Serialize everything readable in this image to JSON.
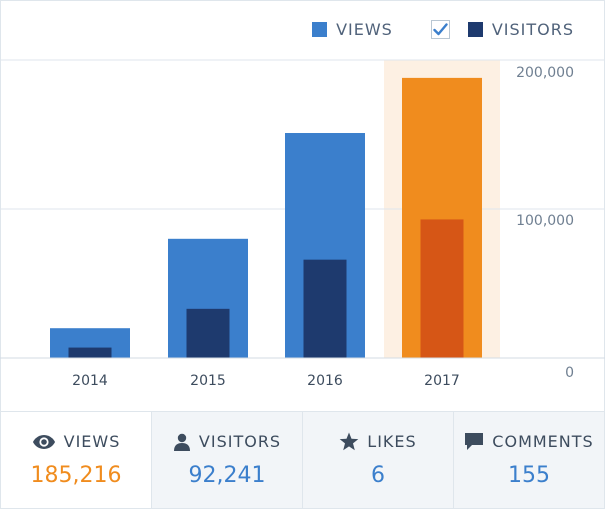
{
  "legend": {
    "views_label": "VIEWS",
    "visitors_label": "VISITORS",
    "visitors_checked": true
  },
  "colors": {
    "views": "#3b7fcc",
    "visitors": "#1e3a6e",
    "highlight_views": "#f08c1e",
    "highlight_visitors": "#d65616",
    "highlight_band": "#fdf0e3",
    "views_value": "#f08c1e",
    "stat_value": "#3b7fcc"
  },
  "chart_data": {
    "type": "bar",
    "categories": [
      "2014",
      "2015",
      "2016",
      "2017"
    ],
    "series": [
      {
        "name": "VIEWS",
        "values": [
          20000,
          80000,
          151000,
          188000
        ]
      },
      {
        "name": "VISITORS",
        "values": [
          7000,
          33000,
          66000,
          93000
        ]
      }
    ],
    "ylim": [
      0,
      200000
    ],
    "y_ticks": [
      0,
      100000,
      200000
    ],
    "y_tick_labels": [
      "0",
      "100,000",
      "200,000"
    ],
    "y_axis_side": "right",
    "highlighted_category": "2017",
    "grid": true,
    "legend_position": "top-right"
  },
  "stats": [
    {
      "icon": "eye-icon",
      "label": "VIEWS",
      "value": "185,216"
    },
    {
      "icon": "person-icon",
      "label": "VISITORS",
      "value": "92,241"
    },
    {
      "icon": "star-icon",
      "label": "LIKES",
      "value": "6"
    },
    {
      "icon": "comment-icon",
      "label": "COMMENTS",
      "value": "155"
    }
  ]
}
